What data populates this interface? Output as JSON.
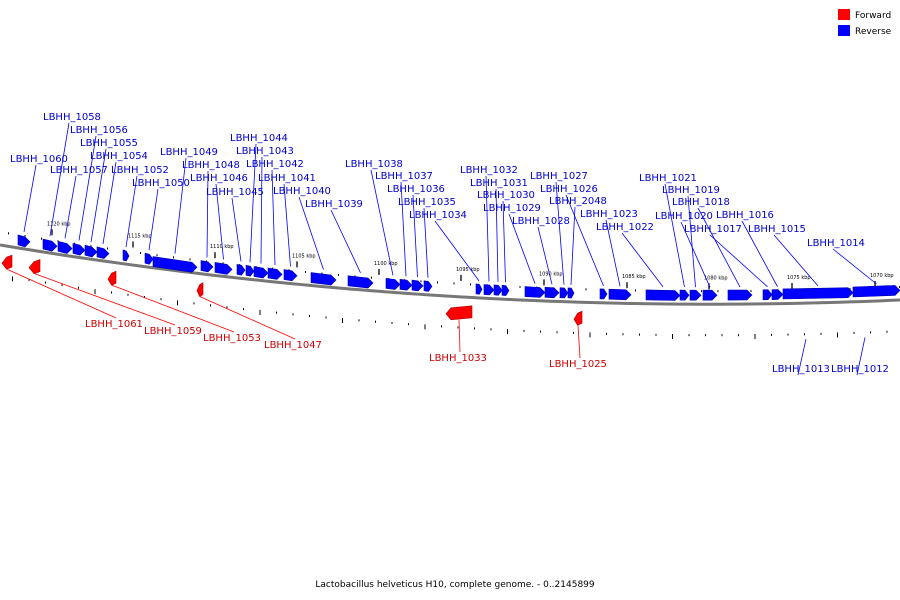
{
  "caption": "Lactobacillus helveticus H10, complete genome. - 0..2145899",
  "legend": [
    {
      "label": "Forward",
      "color": "#ff0000"
    },
    {
      "label": "Reverse",
      "color": "#0000ff"
    }
  ],
  "chart_data": {
    "type": "genome-track",
    "colors": {
      "forward": "#ff0000",
      "reverse": "#0000ff"
    },
    "tick_labels": [
      "1120 kbp",
      "1115 kbp",
      "1110 kbp",
      "1105 kbp",
      "1100 kbp",
      "1095 kbp",
      "1090 kbp",
      "1085 kbp",
      "1080 kbp",
      "1075 kbp",
      "1070 kbp"
    ],
    "genes": [
      {
        "name": "LBHH_1060",
        "strand": "reverse"
      },
      {
        "name": "LBHH_1058",
        "strand": "reverse"
      },
      {
        "name": "LBHH_1057",
        "strand": "reverse"
      },
      {
        "name": "LBHH_1056",
        "strand": "reverse"
      },
      {
        "name": "LBHH_1055",
        "strand": "reverse"
      },
      {
        "name": "LBHH_1054",
        "strand": "reverse"
      },
      {
        "name": "LBHH_1052",
        "strand": "reverse"
      },
      {
        "name": "LBHH_1050",
        "strand": "reverse"
      },
      {
        "name": "LBHH_1049",
        "strand": "reverse"
      },
      {
        "name": "LBHH_1048",
        "strand": "reverse"
      },
      {
        "name": "LBHH_1046",
        "strand": "reverse"
      },
      {
        "name": "LBHH_1045",
        "strand": "reverse"
      },
      {
        "name": "LBHH_1044",
        "strand": "reverse"
      },
      {
        "name": "LBHH_1043",
        "strand": "reverse"
      },
      {
        "name": "LBHH_1042",
        "strand": "reverse"
      },
      {
        "name": "LBHH_1041",
        "strand": "reverse"
      },
      {
        "name": "LBHH_1040",
        "strand": "reverse"
      },
      {
        "name": "LBHH_1039",
        "strand": "reverse"
      },
      {
        "name": "LBHH_1038",
        "strand": "reverse"
      },
      {
        "name": "LBHH_1037",
        "strand": "reverse"
      },
      {
        "name": "LBHH_1036",
        "strand": "reverse"
      },
      {
        "name": "LBHH_1035",
        "strand": "reverse"
      },
      {
        "name": "LBHH_1034",
        "strand": "reverse"
      },
      {
        "name": "LBHH_1032",
        "strand": "reverse"
      },
      {
        "name": "LBHH_1031",
        "strand": "reverse"
      },
      {
        "name": "LBHH_1030",
        "strand": "reverse"
      },
      {
        "name": "LBHH_1029",
        "strand": "reverse"
      },
      {
        "name": "LBHH_1028",
        "strand": "reverse"
      },
      {
        "name": "LBHH_1027",
        "strand": "reverse"
      },
      {
        "name": "LBHH_1026",
        "strand": "reverse"
      },
      {
        "name": "LBHH_2048",
        "strand": "reverse"
      },
      {
        "name": "LBHH_1023",
        "strand": "reverse"
      },
      {
        "name": "LBHH_1022",
        "strand": "reverse"
      },
      {
        "name": "LBHH_1021",
        "strand": "reverse"
      },
      {
        "name": "LBHH_1019",
        "strand": "reverse"
      },
      {
        "name": "LBHH_1020",
        "strand": "reverse"
      },
      {
        "name": "LBHH_1018",
        "strand": "reverse"
      },
      {
        "name": "LBHH_1017",
        "strand": "reverse"
      },
      {
        "name": "LBHH_1016",
        "strand": "reverse"
      },
      {
        "name": "LBHH_1015",
        "strand": "reverse"
      },
      {
        "name": "LBHH_1014",
        "strand": "reverse"
      },
      {
        "name": "LBHH_1013",
        "strand": "reverse"
      },
      {
        "name": "LBHH_1012",
        "strand": "reverse"
      },
      {
        "name": "LBHH_1061",
        "strand": "forward"
      },
      {
        "name": "LBHH_1059",
        "strand": "forward"
      },
      {
        "name": "LBHH_1053",
        "strand": "forward"
      },
      {
        "name": "LBHH_1047",
        "strand": "forward"
      },
      {
        "name": "LBHH_1033",
        "strand": "forward"
      },
      {
        "name": "LBHH_1025",
        "strand": "forward"
      }
    ]
  }
}
